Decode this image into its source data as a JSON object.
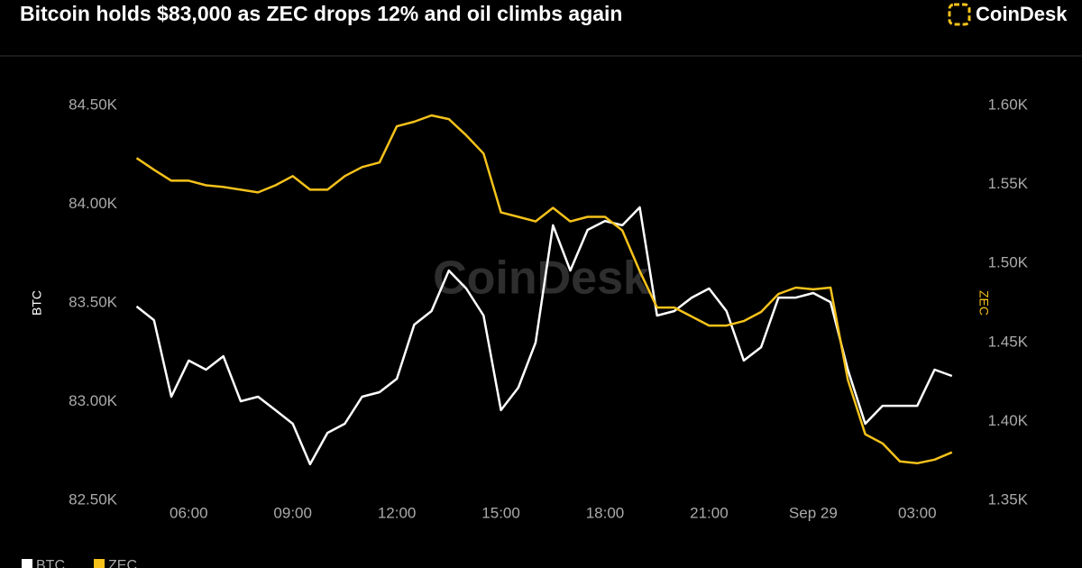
{
  "chart_data": {
    "type": "line",
    "title": "Bitcoin holds $83,000 as ZEC drops 12% and oil climbs again",
    "brand": "CoinDesk",
    "watermark": "CoinDesk",
    "y_label": "BTC",
    "y2_label": "ZEC",
    "x": [
      4.5,
      5,
      5.5,
      6,
      6.5,
      7,
      7.5,
      8,
      8.5,
      9,
      9.5,
      10,
      10.5,
      11,
      11.5,
      12,
      12.5,
      13,
      13.5,
      14,
      14.5,
      15,
      15.5,
      16,
      16.5,
      17,
      17.5,
      18,
      18.5,
      19,
      19.5,
      20,
      20.5,
      21,
      21.5,
      22,
      22.5,
      23,
      23.5,
      24,
      24.5,
      25,
      25.5,
      26,
      26.5,
      27,
      27.5,
      28
    ],
    "xlim": [
      4.2,
      28.5
    ],
    "xticks": [
      {
        "value": 6,
        "label": "06:00"
      },
      {
        "value": 9,
        "label": "09:00"
      },
      {
        "value": 12,
        "label": "12:00"
      },
      {
        "value": 15,
        "label": "15:00"
      },
      {
        "value": 18,
        "label": "18:00"
      },
      {
        "value": 21,
        "label": "21:00"
      },
      {
        "value": 24,
        "label": "Sep 29"
      },
      {
        "value": 27,
        "label": "03:00"
      }
    ],
    "ylim": [
      82500,
      84500
    ],
    "yticks": [
      {
        "value": 82500,
        "label": "82.50K"
      },
      {
        "value": 83000,
        "label": "83.00K"
      },
      {
        "value": 83500,
        "label": "83.50K"
      },
      {
        "value": 84000,
        "label": "84.00K"
      },
      {
        "value": 84500,
        "label": "84.50K"
      }
    ],
    "y2lim": [
      1350,
      1600
    ],
    "y2ticks": [
      {
        "value": 1350,
        "label": "1.35K"
      },
      {
        "value": 1400,
        "label": "1.40K"
      },
      {
        "value": 1450,
        "label": "1.45K"
      },
      {
        "value": 1500,
        "label": "1.50K"
      },
      {
        "value": 1550,
        "label": "1.55K"
      },
      {
        "value": 1600,
        "label": "1.60K"
      }
    ],
    "series": [
      {
        "name": "BTC",
        "color": "#ffffff",
        "values": [
          83482,
          83413,
          83025,
          83208,
          83162,
          83230,
          83002,
          83025,
          82957,
          82888,
          82683,
          82842,
          82888,
          83025,
          83048,
          83116,
          83390,
          83459,
          83664,
          83573,
          83436,
          82957,
          83071,
          83299,
          83893,
          83664,
          83870,
          83915,
          83893,
          83984,
          83436,
          83459,
          83527,
          83573,
          83459,
          83208,
          83276,
          83527,
          83527,
          83550,
          83504,
          83162,
          82888,
          82979,
          82979,
          82979,
          83162,
          83130
        ]
      },
      {
        "name": "ZEC",
        "color": "#f5c21b",
        "axis": "y2",
        "values": [
          1566.7,
          1559.3,
          1552.4,
          1552.4,
          1549.5,
          1548.4,
          1546.7,
          1545,
          1549.5,
          1555.3,
          1546.7,
          1546.7,
          1555.3,
          1561,
          1563.9,
          1586.8,
          1589.7,
          1593.7,
          1591.4,
          1581.1,
          1569.6,
          1532.3,
          1529.5,
          1526.6,
          1535.2,
          1526.6,
          1529.5,
          1529.5,
          1520.9,
          1495.1,
          1472.1,
          1472.1,
          1466.4,
          1460.7,
          1460.7,
          1463.5,
          1469.3,
          1480.7,
          1484.7,
          1483.6,
          1484.7,
          1426.3,
          1391.9,
          1386.1,
          1374.7,
          1373.5,
          1375.8,
          1380.4
        ]
      }
    ]
  }
}
